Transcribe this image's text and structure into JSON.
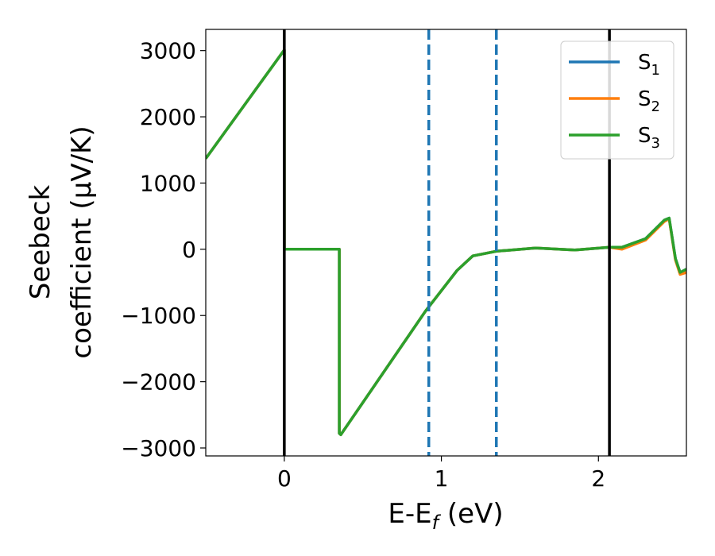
{
  "chart_data": {
    "type": "line",
    "xlabel_main": "E-E",
    "xlabel_sub": "f",
    "xlabel_unit": " (eV)",
    "ylabel_line1": "Seebeck",
    "ylabel_line2": "coefficient  (μV/K)",
    "xlim": [
      -0.5,
      2.56
    ],
    "ylim": [
      -3120,
      3320
    ],
    "xticks": [
      {
        "value": 0,
        "label": "0"
      },
      {
        "value": 1,
        "label": "1"
      },
      {
        "value": 2,
        "label": "2"
      }
    ],
    "yticks": [
      {
        "value": 3000,
        "label": "3000"
      },
      {
        "value": 2000,
        "label": "2000"
      },
      {
        "value": 1000,
        "label": "1000"
      },
      {
        "value": 0,
        "label": "0"
      },
      {
        "value": -1000,
        "label": "−1000"
      },
      {
        "value": -2000,
        "label": "−2000"
      },
      {
        "value": -3000,
        "label": "−3000"
      }
    ],
    "vlines": [
      {
        "x": 0.0,
        "style": "solid",
        "color": "#000000"
      },
      {
        "x": 2.07,
        "style": "solid",
        "color": "#000000"
      },
      {
        "x": 0.92,
        "style": "dashed",
        "color": "#1f77b4"
      },
      {
        "x": 1.35,
        "style": "dashed",
        "color": "#1f77b4"
      }
    ],
    "legend_position": "top-right",
    "series": [
      {
        "name": "S",
        "sub": "1",
        "color": "#1f77b4",
        "x": [
          -0.5,
          0.0,
          0.0,
          0.35,
          0.35,
          0.36,
          0.9,
          1.1,
          1.2,
          1.35,
          1.6,
          1.85,
          2.07,
          2.15,
          2.3,
          2.42,
          2.45,
          2.49,
          2.52,
          2.56
        ],
        "y": [
          1370,
          3010,
          0,
          0,
          -2780,
          -2800,
          -930,
          -320,
          -100,
          -30,
          20,
          -10,
          30,
          30,
          160,
          440,
          470,
          -140,
          -350,
          -300
        ]
      },
      {
        "name": "S",
        "sub": "2",
        "color": "#ff7f0e",
        "x": [
          -0.5,
          0.0,
          0.0,
          0.35,
          0.35,
          0.36,
          0.9,
          1.1,
          1.2,
          1.35,
          1.6,
          1.85,
          2.07,
          2.15,
          2.3,
          2.42,
          2.45,
          2.49,
          2.52,
          2.56
        ],
        "y": [
          1370,
          3010,
          0,
          0,
          -2780,
          -2800,
          -930,
          -320,
          -100,
          -30,
          20,
          -10,
          30,
          0,
          140,
          420,
          460,
          -160,
          -380,
          -350
        ]
      },
      {
        "name": "S",
        "sub": "3",
        "color": "#2ca02c",
        "x": [
          -0.5,
          0.0,
          0.0,
          0.35,
          0.35,
          0.36,
          0.9,
          1.1,
          1.2,
          1.35,
          1.6,
          1.85,
          2.07,
          2.15,
          2.3,
          2.42,
          2.45,
          2.49,
          2.52,
          2.56
        ],
        "y": [
          1370,
          3010,
          0,
          0,
          -2780,
          -2800,
          -930,
          -320,
          -100,
          -30,
          20,
          -10,
          30,
          30,
          160,
          440,
          470,
          -140,
          -350,
          -300
        ]
      }
    ]
  }
}
